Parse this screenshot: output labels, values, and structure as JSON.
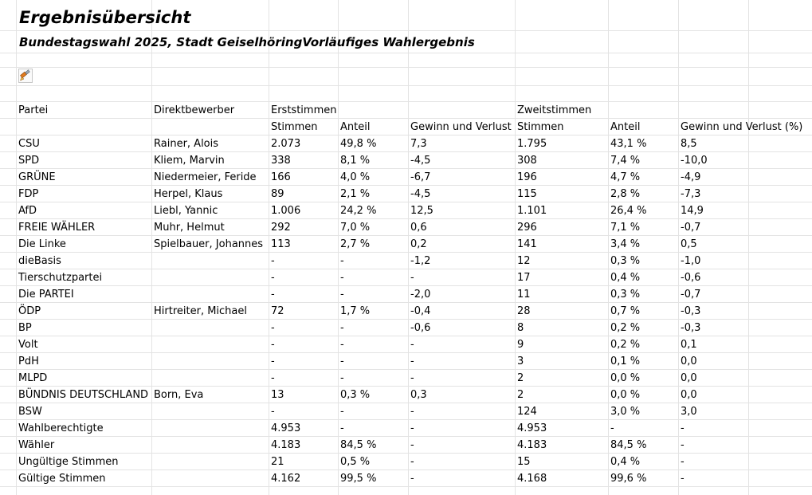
{
  "title": "Ergebnisübersicht",
  "subtitle": "Bundestagswahl 2025, Stadt GeiselhöringVorläufiges Wahlergebnis",
  "header": {
    "partei": "Partei",
    "direktbewerber": "Direktbewerber",
    "erststimmen": "Erststimmen",
    "zweitstimmen": "Zweitstimmen",
    "stimmen1": "Stimmen",
    "anteil1": "Anteil",
    "gewinn1": "Gewinn und Verlust",
    "stimmen2": "Stimmen",
    "anteil2": "Anteil",
    "gewinn2": "Gewinn und Verlust (%)"
  },
  "rows": [
    {
      "partei": "CSU",
      "bewerber": "Rainer, Alois",
      "s1": "2.073",
      "a1": "49,8 %",
      "g1": "7,3",
      "s2": "1.795",
      "a2": "43,1 %",
      "g2": "8,5"
    },
    {
      "partei": "SPD",
      "bewerber": "Kliem, Marvin",
      "s1": "338",
      "a1": "8,1 %",
      "g1": "-4,5",
      "s2": "308",
      "a2": "7,4 %",
      "g2": "-10,0"
    },
    {
      "partei": "GRÜNE",
      "bewerber": "Niedermeier, Feride",
      "s1": "166",
      "a1": "4,0 %",
      "g1": "-6,7",
      "s2": "196",
      "a2": "4,7 %",
      "g2": "-4,9"
    },
    {
      "partei": "FDP",
      "bewerber": "Herpel, Klaus",
      "s1": "89",
      "a1": "2,1 %",
      "g1": "-4,5",
      "s2": "115",
      "a2": "2,8 %",
      "g2": "-7,3"
    },
    {
      "partei": "AfD",
      "bewerber": "Liebl, Yannic",
      "s1": "1.006",
      "a1": "24,2 %",
      "g1": "12,5",
      "s2": "1.101",
      "a2": "26,4 %",
      "g2": "14,9"
    },
    {
      "partei": "FREIE WÄHLER",
      "bewerber": "Muhr, Helmut",
      "s1": "292",
      "a1": "7,0 %",
      "g1": "0,6",
      "s2": "296",
      "a2": "7,1 %",
      "g2": "-0,7"
    },
    {
      "partei": "Die Linke",
      "bewerber": "Spielbauer, Johannes",
      "s1": "113",
      "a1": "2,7 %",
      "g1": "0,2",
      "s2": "141",
      "a2": "3,4 %",
      "g2": "0,5"
    },
    {
      "partei": "dieBasis",
      "bewerber": "",
      "s1": "-",
      "a1": "-",
      "g1": "-1,2",
      "s2": "12",
      "a2": "0,3 %",
      "g2": "-1,0"
    },
    {
      "partei": "Tierschutzpartei",
      "bewerber": "",
      "s1": "-",
      "a1": "-",
      "g1": "-",
      "s2": "17",
      "a2": "0,4 %",
      "g2": "-0,6"
    },
    {
      "partei": "Die PARTEI",
      "bewerber": "",
      "s1": "-",
      "a1": "-",
      "g1": "-2,0",
      "s2": "11",
      "a2": "0,3 %",
      "g2": "-0,7"
    },
    {
      "partei": "ÖDP",
      "bewerber": "Hirtreiter, Michael",
      "s1": "72",
      "a1": "1,7 %",
      "g1": "-0,4",
      "s2": "28",
      "a2": "0,7 %",
      "g2": "-0,3"
    },
    {
      "partei": "BP",
      "bewerber": "",
      "s1": "-",
      "a1": "-",
      "g1": "-0,6",
      "s2": "8",
      "a2": "0,2 %",
      "g2": "-0,3"
    },
    {
      "partei": "Volt",
      "bewerber": "",
      "s1": "-",
      "a1": "-",
      "g1": "-",
      "s2": "9",
      "a2": "0,2 %",
      "g2": "0,1"
    },
    {
      "partei": "PdH",
      "bewerber": "",
      "s1": "-",
      "a1": "-",
      "g1": "-",
      "s2": "3",
      "a2": "0,1 %",
      "g2": "0,0"
    },
    {
      "partei": "MLPD",
      "bewerber": "",
      "s1": "-",
      "a1": "-",
      "g1": "-",
      "s2": "2",
      "a2": "0,0 %",
      "g2": "0,0"
    },
    {
      "partei": "BÜNDNIS DEUTSCHLAND",
      "bewerber": "Born, Eva",
      "s1": "13",
      "a1": "0,3 %",
      "g1": "0,3",
      "s2": "2",
      "a2": "0,0 %",
      "g2": "0,0"
    },
    {
      "partei": "BSW",
      "bewerber": "",
      "s1": "-",
      "a1": "-",
      "g1": "-",
      "s2": "124",
      "a2": "3,0 %",
      "g2": "3,0"
    },
    {
      "partei": "Wahlberechtigte",
      "bewerber": "",
      "s1": "4.953",
      "a1": "-",
      "g1": "-",
      "s2": "4.953",
      "a2": "-",
      "g2": "-"
    },
    {
      "partei": "Wähler",
      "bewerber": "",
      "s1": "4.183",
      "a1": "84,5 %",
      "g1": "-",
      "s2": "4.183",
      "a2": "84,5 %",
      "g2": "-"
    },
    {
      "partei": "Ungültige Stimmen",
      "bewerber": "",
      "s1": "21",
      "a1": "0,5 %",
      "g1": "-",
      "s2": "15",
      "a2": "0,4 %",
      "g2": "-"
    },
    {
      "partei": "Gültige Stimmen",
      "bewerber": "",
      "s1": "4.162",
      "a1": "99,5 %",
      "g1": "-",
      "s2": "4.168",
      "a2": "99,6 %",
      "g2": "-"
    }
  ],
  "icons": {
    "format_painter": "paintbrush-icon"
  }
}
